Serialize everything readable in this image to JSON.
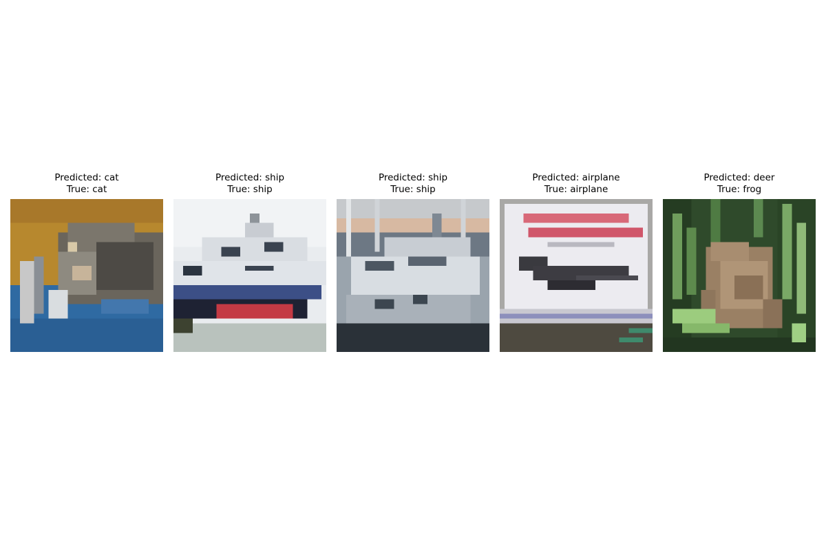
{
  "panels": [
    {
      "predicted": "Predicted: cat",
      "true": "True: cat",
      "subject": "cat"
    },
    {
      "predicted": "Predicted: ship",
      "true": "True: ship",
      "subject": "ship"
    },
    {
      "predicted": "Predicted: ship",
      "true": "True: ship",
      "subject": "boat"
    },
    {
      "predicted": "Predicted: airplane",
      "true": "True: airplane",
      "subject": "airplane"
    },
    {
      "predicted": "Predicted: deer",
      "true": "True: frog",
      "subject": "frog"
    }
  ]
}
